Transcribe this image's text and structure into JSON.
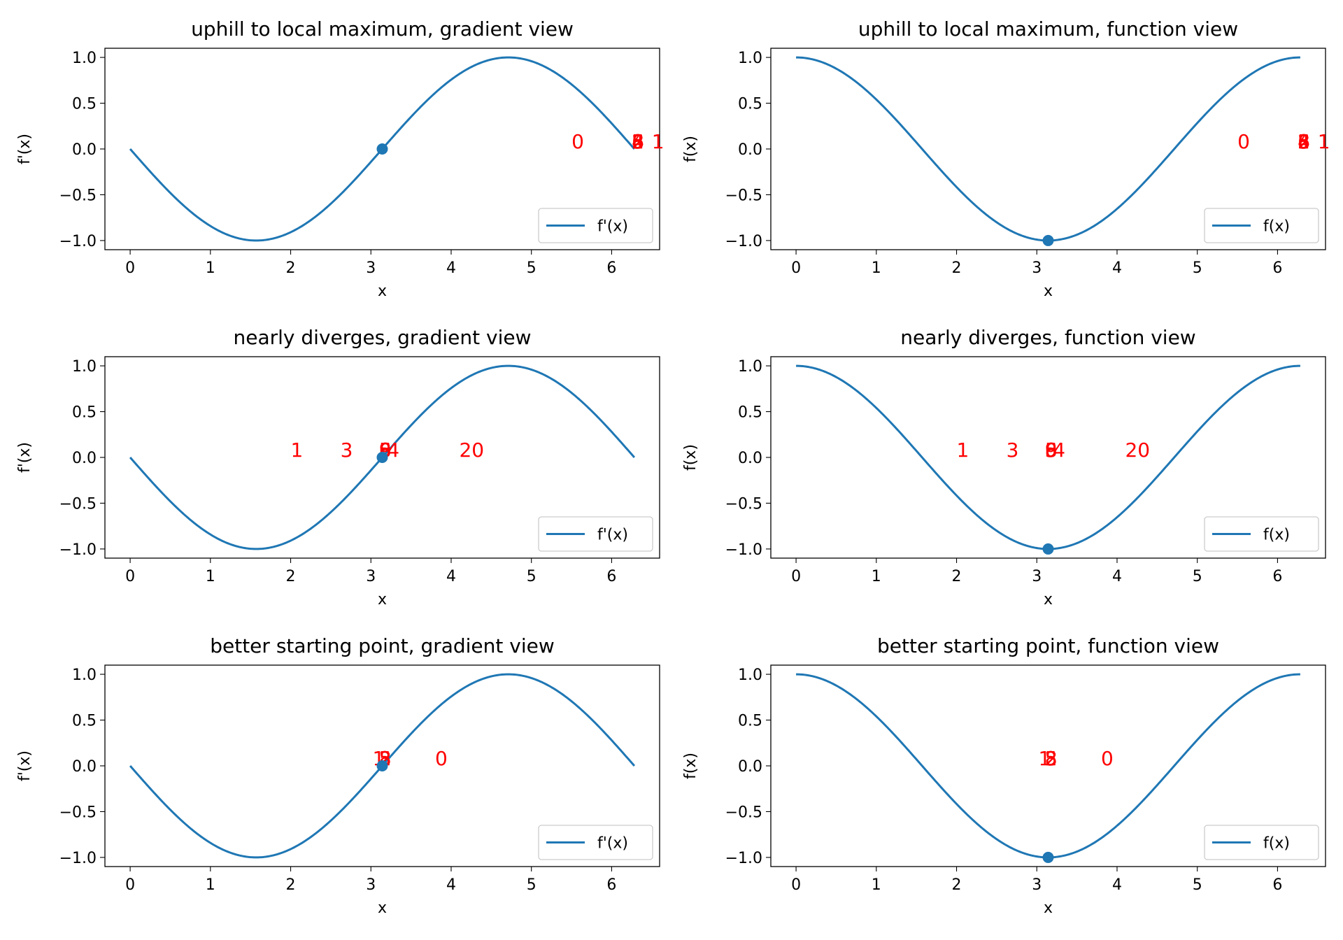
{
  "colors": {
    "curve": "#1f77b4",
    "point": "#1f77b4",
    "annotation": "#ff0000",
    "background": "#ffffff"
  },
  "chart_data": [
    {
      "type": "line",
      "title": "uphill to local maximum, gradient view",
      "xlabel": "x",
      "ylabel": "f'(x)",
      "func": "-sin",
      "xlim": [
        -0.3145,
        6.5977
      ],
      "ylim": [
        -1.1,
        1.1
      ],
      "xticks": [
        "0",
        "1",
        "2",
        "3",
        "4",
        "5",
        "6"
      ],
      "yticks": [
        "−1.0",
        "−0.5",
        "0.0",
        "0.5",
        "1.0"
      ],
      "series": [
        {
          "name": "f'(x)",
          "x_range": [
            0,
            6.2832
          ],
          "y": "-sin(x)"
        }
      ],
      "point": {
        "x": 3.1416,
        "y": 0.0
      },
      "iteration_labels": [
        {
          "label": "0",
          "x": 5.5,
          "y": 0.0
        },
        {
          "label": "2",
          "x": 6.25,
          "y": 0.0
        },
        {
          "label": "3",
          "x": 6.25,
          "y": 0.0
        },
        {
          "label": "4",
          "x": 6.25,
          "y": 0.0
        },
        {
          "label": "5",
          "x": 6.25,
          "y": 0.0
        },
        {
          "label": "6",
          "x": 6.25,
          "y": 0.0
        },
        {
          "label": "8",
          "x": 6.25,
          "y": 0.0
        },
        {
          "label": "1",
          "x": 6.5,
          "y": 0.0
        }
      ],
      "legend": {
        "entry": "f'(x)",
        "position": "lower right"
      }
    },
    {
      "type": "line",
      "title": "uphill to local maximum, function view",
      "xlabel": "x",
      "ylabel": "f(x)",
      "func": "cos",
      "xlim": [
        -0.3145,
        6.5977
      ],
      "ylim": [
        -1.1,
        1.1
      ],
      "xticks": [
        "0",
        "1",
        "2",
        "3",
        "4",
        "5",
        "6"
      ],
      "yticks": [
        "−1.0",
        "−0.5",
        "0.0",
        "0.5",
        "1.0"
      ],
      "series": [
        {
          "name": "f(x)",
          "x_range": [
            0,
            6.2832
          ],
          "y": "cos(x)"
        }
      ],
      "point": {
        "x": 3.1416,
        "y": -1.0
      },
      "iteration_labels": [
        {
          "label": "0",
          "x": 5.5,
          "y": 0.0
        },
        {
          "label": "2",
          "x": 6.25,
          "y": 0.0
        },
        {
          "label": "3",
          "x": 6.25,
          "y": 0.0
        },
        {
          "label": "4",
          "x": 6.25,
          "y": 0.0
        },
        {
          "label": "5",
          "x": 6.25,
          "y": 0.0
        },
        {
          "label": "6",
          "x": 6.25,
          "y": 0.0
        },
        {
          "label": "8",
          "x": 6.25,
          "y": 0.0
        },
        {
          "label": "1",
          "x": 6.5,
          "y": 0.0
        }
      ],
      "legend": {
        "entry": "f(x)",
        "position": "lower right"
      }
    },
    {
      "type": "line",
      "title": "nearly diverges, gradient view",
      "xlabel": "x",
      "ylabel": "f'(x)",
      "func": "-sin",
      "xlim": [
        -0.3145,
        6.5977
      ],
      "ylim": [
        -1.1,
        1.1
      ],
      "xticks": [
        "0",
        "1",
        "2",
        "3",
        "4",
        "5",
        "6"
      ],
      "yticks": [
        "−1.0",
        "−0.5",
        "0.0",
        "0.5",
        "1.0"
      ],
      "series": [
        {
          "name": "f'(x)",
          "x_range": [
            0,
            6.2832
          ],
          "y": "-sin(x)"
        }
      ],
      "point": {
        "x": 3.1416,
        "y": 0.0
      },
      "iteration_labels": [
        {
          "label": "1",
          "x": 2.0,
          "y": 0.0
        },
        {
          "label": "3",
          "x": 2.62,
          "y": 0.0
        },
        {
          "label": "5",
          "x": 3.1,
          "y": 0.0
        },
        {
          "label": "6",
          "x": 3.1,
          "y": 0.0
        },
        {
          "label": "8",
          "x": 3.1,
          "y": 0.0
        },
        {
          "label": "9",
          "x": 3.1,
          "y": 0.0
        },
        {
          "label": "4",
          "x": 3.2,
          "y": 0.0
        },
        {
          "label": "20",
          "x": 4.1,
          "y": 0.0
        }
      ],
      "legend": {
        "entry": "f'(x)",
        "position": "lower right"
      }
    },
    {
      "type": "line",
      "title": "nearly diverges, function view",
      "xlabel": "x",
      "ylabel": "f(x)",
      "func": "cos",
      "xlim": [
        -0.3145,
        6.5977
      ],
      "ylim": [
        -1.1,
        1.1
      ],
      "xticks": [
        "0",
        "1",
        "2",
        "3",
        "4",
        "5",
        "6"
      ],
      "yticks": [
        "−1.0",
        "−0.5",
        "0.0",
        "0.5",
        "1.0"
      ],
      "series": [
        {
          "name": "f(x)",
          "x_range": [
            0,
            6.2832
          ],
          "y": "cos(x)"
        }
      ],
      "point": {
        "x": 3.1416,
        "y": -1.0
      },
      "iteration_labels": [
        {
          "label": "1",
          "x": 2.0,
          "y": 0.0
        },
        {
          "label": "3",
          "x": 2.62,
          "y": 0.0
        },
        {
          "label": "5",
          "x": 3.1,
          "y": 0.0
        },
        {
          "label": "6",
          "x": 3.1,
          "y": 0.0
        },
        {
          "label": "8",
          "x": 3.1,
          "y": 0.0
        },
        {
          "label": "9",
          "x": 3.1,
          "y": 0.0
        },
        {
          "label": "4",
          "x": 3.2,
          "y": 0.0
        },
        {
          "label": "20",
          "x": 4.1,
          "y": 0.0
        }
      ],
      "legend": {
        "entry": "f(x)",
        "position": "lower right"
      }
    },
    {
      "type": "line",
      "title": "better starting point, gradient view",
      "xlabel": "x",
      "ylabel": "f'(x)",
      "func": "-sin",
      "xlim": [
        -0.3145,
        6.5977
      ],
      "ylim": [
        -1.1,
        1.1
      ],
      "xticks": [
        "0",
        "1",
        "2",
        "3",
        "4",
        "5",
        "6"
      ],
      "yticks": [
        "−1.0",
        "−0.5",
        "0.0",
        "0.5",
        "1.0"
      ],
      "series": [
        {
          "name": "f'(x)",
          "x_range": [
            0,
            6.2832
          ],
          "y": "-sin(x)"
        }
      ],
      "point": {
        "x": 3.1416,
        "y": 0.0
      },
      "iteration_labels": [
        {
          "label": "1",
          "x": 3.02,
          "y": 0.0
        },
        {
          "label": "2",
          "x": 3.1,
          "y": 0.0
        },
        {
          "label": "3",
          "x": 3.1,
          "y": 0.0
        },
        {
          "label": "5",
          "x": 3.1,
          "y": 0.0
        },
        {
          "label": "8",
          "x": 3.1,
          "y": 0.0
        },
        {
          "label": "0",
          "x": 3.8,
          "y": 0.0
        }
      ],
      "legend": {
        "entry": "f'(x)",
        "position": "lower right"
      }
    },
    {
      "type": "line",
      "title": "better starting point, function view",
      "xlabel": "x",
      "ylabel": "f(x)",
      "func": "cos",
      "xlim": [
        -0.3145,
        6.5977
      ],
      "ylim": [
        -1.1,
        1.1
      ],
      "xticks": [
        "0",
        "1",
        "2",
        "3",
        "4",
        "5",
        "6"
      ],
      "yticks": [
        "−1.0",
        "−0.5",
        "0.0",
        "0.5",
        "1.0"
      ],
      "series": [
        {
          "name": "f(x)",
          "x_range": [
            0,
            6.2832
          ],
          "y": "cos(x)"
        }
      ],
      "point": {
        "x": 3.1416,
        "y": -1.0
      },
      "iteration_labels": [
        {
          "label": "1",
          "x": 3.02,
          "y": 0.0
        },
        {
          "label": "2",
          "x": 3.1,
          "y": 0.0
        },
        {
          "label": "3",
          "x": 3.1,
          "y": 0.0
        },
        {
          "label": "5",
          "x": 3.1,
          "y": 0.0
        },
        {
          "label": "8",
          "x": 3.1,
          "y": 0.0
        },
        {
          "label": "0",
          "x": 3.8,
          "y": 0.0
        }
      ],
      "legend": {
        "entry": "f(x)",
        "position": "lower right"
      }
    }
  ]
}
